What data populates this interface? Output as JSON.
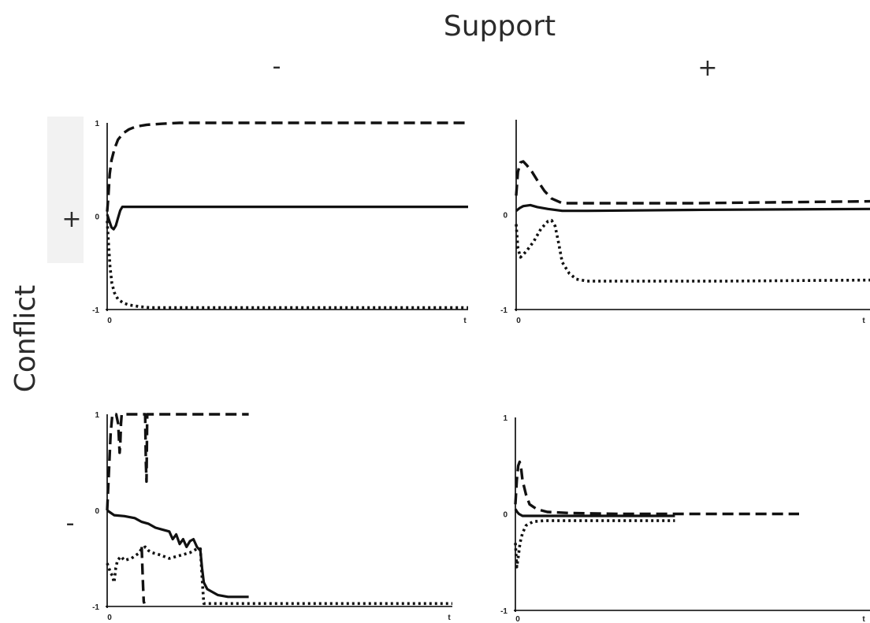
{
  "figure": {
    "col_header": "Support",
    "row_header": "Conflict",
    "col_labels": [
      "-",
      "+"
    ],
    "row_labels": [
      "+",
      "-"
    ]
  },
  "styles": {
    "solid": "#111111",
    "dashed": "#111111",
    "dotted": "#111111",
    "row_label_bg": "#f2f2f2"
  },
  "chart_data": [
    {
      "type": "line",
      "panel": "support-minus-conflict-plus",
      "x_tick_labels": [
        "0",
        "t"
      ],
      "y_tick_labels": [
        "1",
        "0",
        "-1"
      ],
      "xlim": [
        0,
        1
      ],
      "ylim": [
        -1,
        1
      ],
      "series": [
        {
          "style": "dashed",
          "x": [
            0,
            0.003,
            0.007,
            0.012,
            0.02,
            0.03,
            0.045,
            0.06,
            0.08,
            0.11,
            0.15,
            0.2,
            0.3,
            1.0
          ],
          "y": [
            0.05,
            0.2,
            0.45,
            0.6,
            0.72,
            0.82,
            0.89,
            0.93,
            0.96,
            0.98,
            0.99,
            1.0,
            1.0,
            1.0
          ]
        },
        {
          "style": "solid",
          "x": [
            0,
            0.006,
            0.012,
            0.018,
            0.024,
            0.03,
            0.036,
            0.042,
            0.05,
            0.06,
            0.08,
            0.2,
            1.0
          ],
          "y": [
            0.02,
            -0.05,
            -0.12,
            -0.14,
            -0.1,
            -0.02,
            0.06,
            0.1,
            0.1,
            0.1,
            0.1,
            0.1,
            0.1
          ]
        },
        {
          "style": "dotted",
          "x": [
            0,
            0.004,
            0.008,
            0.013,
            0.02,
            0.03,
            0.045,
            0.06,
            0.09,
            0.12,
            0.2,
            1.0
          ],
          "y": [
            -0.05,
            -0.3,
            -0.55,
            -0.72,
            -0.82,
            -0.89,
            -0.93,
            -0.95,
            -0.97,
            -0.98,
            -0.98,
            -0.98
          ]
        }
      ]
    },
    {
      "type": "line",
      "panel": "support-plus-conflict-plus",
      "x_tick_labels": [
        "0",
        "t"
      ],
      "y_tick_labels": [
        "0",
        "-1"
      ],
      "xlim": [
        0,
        1
      ],
      "ylim": [
        -1,
        1
      ],
      "series": [
        {
          "style": "dashed",
          "x": [
            0,
            0.005,
            0.012,
            0.02,
            0.03,
            0.045,
            0.06,
            0.08,
            0.1,
            0.13,
            0.2,
            0.5,
            1.0
          ],
          "y": [
            0.2,
            0.45,
            0.55,
            0.56,
            0.52,
            0.45,
            0.36,
            0.25,
            0.17,
            0.12,
            0.12,
            0.12,
            0.14
          ]
        },
        {
          "style": "solid",
          "x": [
            0,
            0.01,
            0.02,
            0.04,
            0.06,
            0.09,
            0.13,
            0.2,
            0.5,
            1.0
          ],
          "y": [
            0.04,
            0.07,
            0.09,
            0.1,
            0.08,
            0.06,
            0.04,
            0.04,
            0.05,
            0.06
          ]
        },
        {
          "style": "dotted",
          "x": [
            0,
            0.005,
            0.012,
            0.02,
            0.03,
            0.05,
            0.07,
            0.09,
            0.1,
            0.11,
            0.12,
            0.13,
            0.15,
            0.17,
            0.2,
            0.25,
            0.35,
            0.6,
            1.0
          ],
          "y": [
            -0.1,
            -0.35,
            -0.45,
            -0.42,
            -0.38,
            -0.28,
            -0.15,
            -0.07,
            -0.06,
            -0.12,
            -0.3,
            -0.5,
            -0.62,
            -0.68,
            -0.7,
            -0.7,
            -0.7,
            -0.7,
            -0.69
          ]
        }
      ]
    },
    {
      "type": "line",
      "panel": "support-minus-conflict-minus",
      "x_tick_labels": [
        "0",
        "t"
      ],
      "y_tick_labels": [
        "1",
        "0",
        "-1"
      ],
      "xlim": [
        0,
        1
      ],
      "ylim": [
        -1,
        1
      ],
      "series": [
        {
          "style": "dashed",
          "x": [
            0,
            0.005,
            0.01,
            0.015,
            0.02,
            0.026,
            0.032,
            0.036,
            0.038,
            0.04,
            0.042,
            0.045,
            0.05,
            0.07,
            0.085,
            0.11,
            0.112,
            0.114,
            0.116,
            0.12,
            0.2,
            0.3,
            0.41
          ],
          "y": [
            0,
            0.4,
            0.8,
            1.0,
            1.0,
            1.0,
            0.9,
            0.6,
            0.68,
            0.9,
            1.0,
            1.0,
            1.0,
            1.0,
            1.0,
            1.0,
            0.5,
            0.3,
            1.0,
            1.0,
            1.0,
            1.0,
            1.0
          ]
        },
        {
          "style": "solid",
          "x": [
            0,
            0.02,
            0.05,
            0.08,
            0.1,
            0.12,
            0.14,
            0.16,
            0.18,
            0.19,
            0.2,
            0.21,
            0.22,
            0.23,
            0.24,
            0.25,
            0.26,
            0.27,
            0.275,
            0.28,
            0.29,
            0.32,
            0.35,
            0.41
          ],
          "y": [
            0,
            -0.05,
            -0.06,
            -0.08,
            -0.12,
            -0.14,
            -0.18,
            -0.2,
            -0.22,
            -0.3,
            -0.25,
            -0.35,
            -0.3,
            -0.38,
            -0.32,
            -0.3,
            -0.38,
            -0.42,
            -0.6,
            -0.75,
            -0.82,
            -0.88,
            -0.9,
            -0.9
          ]
        },
        {
          "style": "dotted",
          "x": [
            0,
            0.01,
            0.015,
            0.02,
            0.025,
            0.03,
            0.035,
            0.04,
            0.05,
            0.07,
            0.09,
            0.1,
            0.11,
            0.12,
            0.13,
            0.15,
            0.18,
            0.2,
            0.22,
            0.24,
            0.25,
            0.26,
            0.27,
            0.275,
            0.28,
            0.3,
            0.5,
            0.8,
            1.0
          ],
          "y": [
            -0.55,
            -0.65,
            -0.68,
            -0.75,
            -0.6,
            -0.52,
            -0.5,
            -0.48,
            -0.52,
            -0.5,
            -0.45,
            -0.4,
            -0.38,
            -0.42,
            -0.44,
            -0.46,
            -0.5,
            -0.48,
            -0.46,
            -0.44,
            -0.42,
            -0.4,
            -0.4,
            -0.7,
            -0.97,
            -0.97,
            -0.97,
            -0.97,
            -0.97
          ]
        },
        {
          "style": "dashed",
          "x": [
            0.1,
            0.102,
            0.104,
            0.106,
            0.108
          ],
          "y": [
            -0.38,
            -0.6,
            -0.8,
            -0.95,
            -0.97
          ]
        }
      ]
    },
    {
      "type": "line",
      "panel": "support-plus-conflict-minus",
      "x_tick_labels": [
        "0",
        "t"
      ],
      "y_tick_labels": [
        "1",
        "0",
        "-1"
      ],
      "xlim": [
        0,
        1
      ],
      "ylim": [
        -1,
        1
      ],
      "series": [
        {
          "style": "dashed",
          "x": [
            0,
            0.004,
            0.008,
            0.012,
            0.016,
            0.02,
            0.03,
            0.04,
            0.06,
            0.09,
            0.15,
            0.3,
            0.5,
            0.8
          ],
          "y": [
            0.1,
            0.35,
            0.5,
            0.54,
            0.48,
            0.35,
            0.2,
            0.1,
            0.05,
            0.02,
            0.01,
            0.0,
            0.0,
            0.0
          ]
        },
        {
          "style": "solid",
          "x": [
            0,
            0.005,
            0.01,
            0.02,
            0.04,
            0.08,
            0.15,
            0.3,
            0.45
          ],
          "y": [
            0.05,
            0.02,
            0.0,
            -0.02,
            -0.02,
            -0.02,
            -0.02,
            -0.02,
            -0.02
          ]
        },
        {
          "style": "dotted",
          "x": [
            0,
            0.004,
            0.008,
            0.013,
            0.02,
            0.03,
            0.05,
            0.08,
            0.15,
            0.3,
            0.45
          ],
          "y": [
            -0.3,
            -0.55,
            -0.45,
            -0.3,
            -0.2,
            -0.12,
            -0.08,
            -0.07,
            -0.07,
            -0.07,
            -0.07
          ]
        }
      ]
    }
  ]
}
